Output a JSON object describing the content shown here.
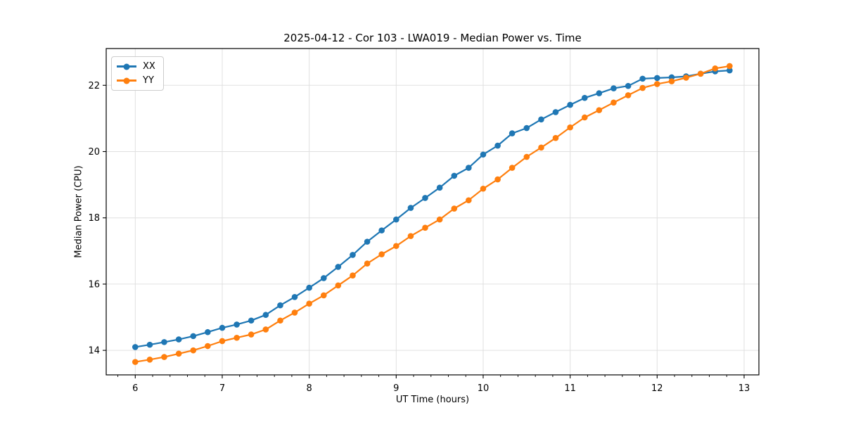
{
  "chart_data": {
    "type": "line",
    "title": "2025-04-12 - Cor 103 - LWA019 - Median Power vs. Time",
    "xlabel": "UT Time (hours)",
    "ylabel": "Median Power (CPU)",
    "xlim": [
      5.666,
      13.17
    ],
    "ylim": [
      13.26,
      23.11
    ],
    "x_ticks": [
      6,
      7,
      8,
      9,
      10,
      11,
      12,
      13
    ],
    "y_ticks": [
      14,
      16,
      18,
      20,
      22
    ],
    "x_minor_tick_step": 0.2,
    "grid": true,
    "legend_position": "upper left",
    "background_color": "#ffffff",
    "grid_color": "#e0e0e0",
    "axis_color": "#000000",
    "marker": "circle",
    "x": [
      6.0,
      6.167,
      6.333,
      6.5,
      6.667,
      6.833,
      7.0,
      7.167,
      7.333,
      7.5,
      7.667,
      7.833,
      8.0,
      8.167,
      8.333,
      8.5,
      8.667,
      8.833,
      9.0,
      9.167,
      9.333,
      9.5,
      9.667,
      9.833,
      10.0,
      10.167,
      10.333,
      10.5,
      10.667,
      10.833,
      11.0,
      11.167,
      11.333,
      11.5,
      11.667,
      11.833,
      12.0,
      12.167,
      12.333,
      12.5,
      12.667,
      12.833
    ],
    "series": [
      {
        "name": "XX",
        "color": "#1f77b4",
        "values": [
          14.1,
          14.17,
          14.25,
          14.33,
          14.43,
          14.55,
          14.68,
          14.78,
          14.9,
          15.07,
          15.36,
          15.61,
          15.89,
          16.18,
          16.52,
          16.88,
          17.28,
          17.62,
          17.95,
          18.3,
          18.6,
          18.91,
          19.27,
          19.51,
          19.91,
          20.18,
          20.55,
          20.71,
          20.97,
          21.19,
          21.41,
          21.62,
          21.76,
          21.91,
          21.98,
          22.2,
          22.22,
          22.24,
          22.27,
          22.35,
          22.42,
          22.45
        ]
      },
      {
        "name": "YY",
        "color": "#ff7f0e",
        "values": [
          13.65,
          13.72,
          13.8,
          13.9,
          14.0,
          14.13,
          14.28,
          14.38,
          14.48,
          14.63,
          14.9,
          15.14,
          15.41,
          15.66,
          15.96,
          16.26,
          16.62,
          16.9,
          17.15,
          17.45,
          17.7,
          17.95,
          18.28,
          18.53,
          18.88,
          19.16,
          19.51,
          19.84,
          20.12,
          20.41,
          20.73,
          21.03,
          21.25,
          21.48,
          21.7,
          21.92,
          22.04,
          22.12,
          22.23,
          22.35,
          22.51,
          22.58
        ]
      }
    ]
  }
}
